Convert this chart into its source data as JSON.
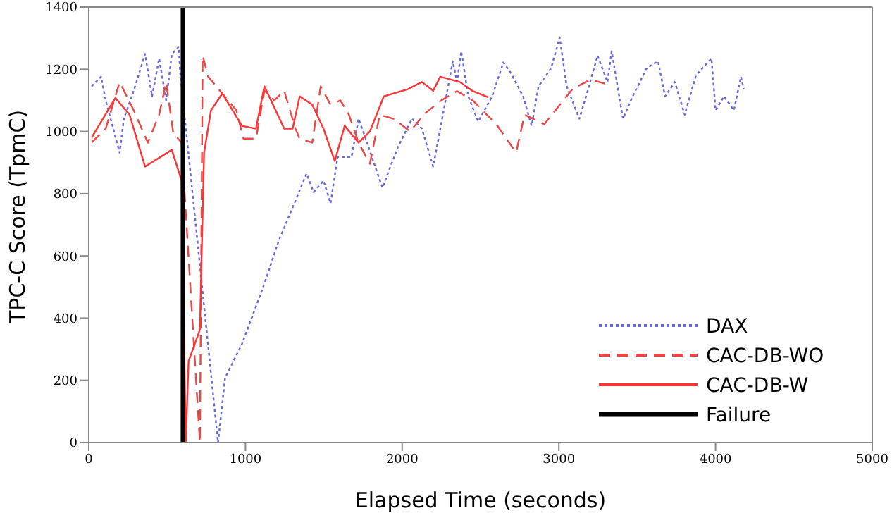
{
  "chart_data": {
    "type": "line",
    "xlabel": "Elapsed Time (seconds)",
    "ylabel": "TPC-C Score (TpmC)",
    "xlim": [
      0,
      5000
    ],
    "xticks": [
      0,
      1000,
      2000,
      3000,
      4000,
      5000
    ],
    "ylim": [
      0,
      1400
    ],
    "yticks": [
      0,
      200,
      400,
      600,
      800,
      1000,
      1200,
      1400
    ],
    "legend": "bottom right",
    "marker": "none",
    "series": [
      {
        "name": "DAX",
        "color": "#6666dd",
        "line_style": "dotted",
        "x": [
          18,
          78,
          108,
          197,
          224,
          287,
          359,
          404,
          449,
          494,
          530,
          574,
          583,
          825,
          870,
          978,
          1121,
          1211,
          1390,
          1435,
          1498,
          1543,
          1588,
          1677,
          1722,
          1767,
          1874,
          1973,
          2063,
          2126,
          2198,
          2260,
          2323,
          2350,
          2377,
          2422,
          2485,
          2574,
          2646,
          2691,
          2772,
          2826,
          2870,
          2951,
          3005,
          3050,
          3131,
          3184,
          3247,
          3310,
          3337,
          3409,
          3471,
          3561,
          3633,
          3678,
          3740,
          3803,
          3875,
          3974,
          4000,
          4054,
          4117,
          4162,
          4180
        ],
        "values": [
          1145,
          1176,
          1100,
          932,
          1041,
          1131,
          1249,
          1113,
          1235,
          1100,
          1249,
          1272,
          1190,
          0,
          208,
          317,
          511,
          647,
          864,
          805,
          842,
          769,
          918,
          918,
          1041,
          977,
          819,
          950,
          1041,
          1009,
          887,
          1054,
          1226,
          1159,
          1258,
          1113,
          1032,
          1113,
          1222,
          1190,
          1113,
          1018,
          1145,
          1204,
          1303,
          1145,
          1041,
          1131,
          1244,
          1159,
          1258,
          1041,
          1113,
          1204,
          1226,
          1113,
          1159,
          1054,
          1181,
          1235,
          1068,
          1113,
          1068,
          1176,
          1136
        ]
      },
      {
        "name": "CAC-DB-WO",
        "color": "#ee4444",
        "line_style": "dashed",
        "x": [
          18,
          108,
          197,
          287,
          377,
          449,
          494,
          539,
          592,
          709,
          727,
          762,
          852,
          942,
          987,
          1067,
          1121,
          1184,
          1247,
          1319,
          1346,
          1426,
          1480,
          1543,
          1606,
          1660,
          1722,
          1794,
          1857,
          1950,
          2050,
          2150,
          2250,
          2350,
          2450,
          2601,
          2727,
          2781,
          2906,
          3086,
          3202,
          3292
        ],
        "values": [
          964,
          1009,
          1159,
          1068,
          964,
          1054,
          1159,
          995,
          964,
          0,
          1244,
          1176,
          1122,
          1068,
          977,
          977,
          1131,
          1100,
          1131,
          1009,
          977,
          964,
          1145,
          1086,
          1100,
          1054,
          964,
          896,
          1054,
          1040,
          1000,
          1060,
          1100,
          1130,
          1100,
          1023,
          932,
          1054,
          1023,
          1136,
          1167,
          1154
        ]
      },
      {
        "name": "CAC-DB-W",
        "color": "#ff3333",
        "line_style": "solid",
        "x": [
          18,
          170,
          260,
          359,
          530,
          592,
          619,
          637,
          709,
          736,
          780,
          852,
          978,
          1067,
          1121,
          1247,
          1301,
          1346,
          1426,
          1498,
          1570,
          1633,
          1722,
          1794,
          1883,
          2036,
          2126,
          2198,
          2243,
          2368,
          2450,
          2550
        ],
        "values": [
          980,
          1108,
          1054,
          887,
          941,
          842,
          0,
          262,
          362,
          932,
          1068,
          1122,
          1018,
          1009,
          1145,
          1009,
          1009,
          1113,
          1086,
          1009,
          905,
          1018,
          964,
          1000,
          1113,
          1136,
          1159,
          1131,
          1176,
          1159,
          1130,
          1110
        ]
      },
      {
        "name": "Failure",
        "color": "#000000",
        "line_style": "solid",
        "x": [
          600,
          600
        ],
        "values": [
          0,
          1400
        ]
      }
    ]
  }
}
